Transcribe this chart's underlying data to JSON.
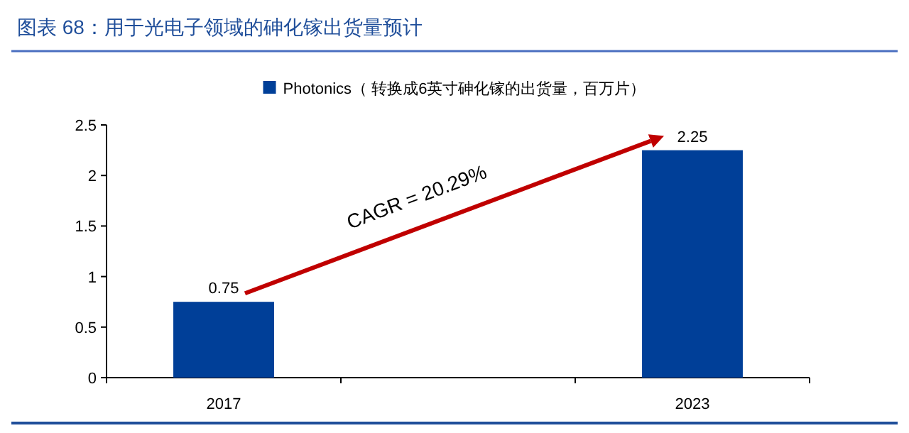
{
  "chart_data": {
    "type": "bar",
    "title": "图表 68：用于光电子领域的砷化镓出货量预计",
    "categories": [
      "2017",
      null,
      "2023"
    ],
    "series": [
      {
        "name": "Photonics（ 转换成6英寸砷化镓的出货量，百万片）",
        "color": "#003f98",
        "values": [
          0.75,
          null,
          2.25
        ]
      }
    ],
    "ylim": [
      0,
      2.5
    ],
    "yticks": [
      0,
      0.5,
      1,
      1.5,
      2,
      2.5
    ],
    "data_labels": true,
    "legend": "top",
    "annotations": [
      "CAGR = 20.29%"
    ]
  }
}
